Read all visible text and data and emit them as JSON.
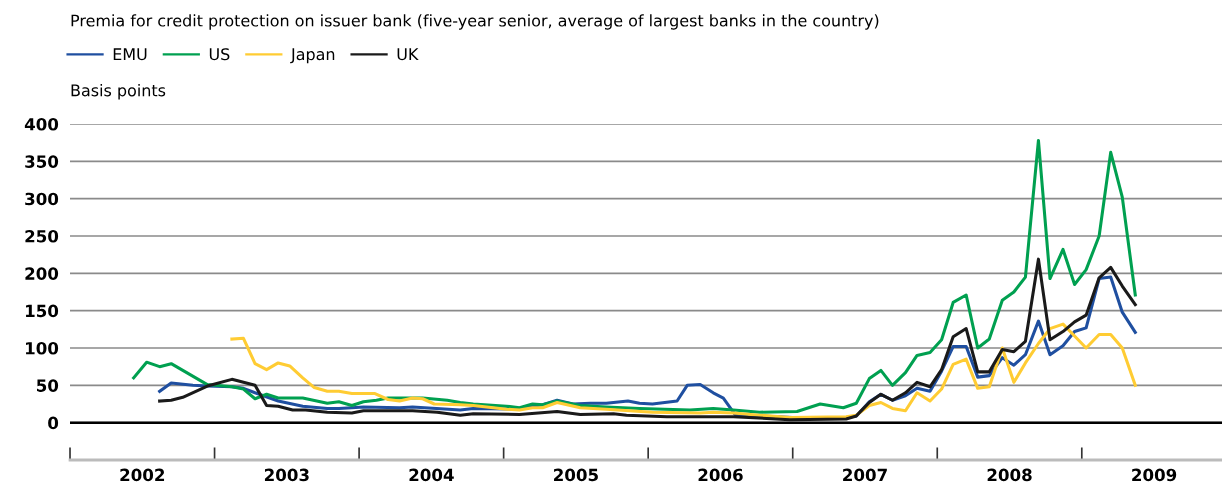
{
  "chart_data": {
    "type": "line",
    "title": "Premia for credit protection on issuer bank (five-year senior, average of largest banks in the country)",
    "ylabel": "Basis points",
    "series": [
      {
        "name": "EMU",
        "color": "#1f4fa0",
        "x": [
          2002.62,
          2002.7,
          2002.85,
          2002.95,
          2003.12,
          2003.2,
          2003.28,
          2003.44,
          2003.61,
          2003.78,
          2003.86,
          2003.95,
          2004.03,
          2004.28,
          2004.37,
          2004.7,
          2004.79,
          2005.11,
          2005.2,
          2005.27,
          2005.37,
          2005.48,
          2005.6,
          2005.71,
          2005.86,
          2005.94,
          2006.03,
          2006.2,
          2006.27,
          2006.36,
          2006.45,
          2006.52,
          2006.6,
          2006.77,
          2007.0,
          2007.37,
          2007.44,
          2007.53,
          2007.61,
          2007.69,
          2007.78,
          2007.86,
          2007.95,
          2008.03,
          2008.11,
          2008.2,
          2008.28,
          2008.36,
          2008.45,
          2008.53,
          2008.61,
          2008.7,
          2008.78,
          2008.87,
          2008.95,
          2009.03,
          2009.12,
          2009.2,
          2009.28,
          2009.37
        ],
        "values": [
          42,
          53,
          50,
          49,
          48,
          46,
          40,
          29,
          22,
          19,
          19,
          20,
          21,
          20,
          21,
          17,
          19,
          18,
          22,
          24,
          30,
          25,
          26,
          26,
          29,
          26,
          25,
          29,
          50,
          51,
          40,
          33,
          11,
          9,
          7,
          7,
          9,
          28,
          38,
          30,
          36,
          46,
          42,
          69,
          102,
          102,
          61,
          63,
          87,
          77,
          91,
          136,
          91,
          103,
          122,
          127,
          193,
          195,
          148,
          121
        ]
      },
      {
        "name": "US",
        "color": "#00a050",
        "x": [
          2002.44,
          2002.53,
          2002.62,
          2002.7,
          2002.95,
          2003.12,
          2003.2,
          2003.28,
          2003.36,
          2003.44,
          2003.61,
          2003.78,
          2003.86,
          2003.95,
          2004.03,
          2004.12,
          2004.2,
          2004.44,
          2004.61,
          2004.7,
          2004.79,
          2005.02,
          2005.11,
          2005.2,
          2005.27,
          2005.37,
          2005.53,
          2005.71,
          2005.94,
          2006.29,
          2006.45,
          2006.59,
          2006.77,
          2007.03,
          2007.19,
          2007.35,
          2007.44,
          2007.53,
          2007.61,
          2007.69,
          2007.78,
          2007.86,
          2007.95,
          2008.03,
          2008.11,
          2008.2,
          2008.28,
          2008.36,
          2008.45,
          2008.53,
          2008.61,
          2008.7,
          2008.78,
          2008.87,
          2008.95,
          2009.03,
          2009.12,
          2009.2,
          2009.28,
          2009.37
        ],
        "values": [
          60,
          81,
          75,
          79,
          51,
          48,
          45,
          32,
          38,
          33,
          33,
          26,
          28,
          23,
          28,
          30,
          33,
          33,
          30,
          27,
          25,
          22,
          20,
          25,
          24,
          29,
          23,
          21,
          19,
          17,
          19,
          17,
          14,
          15,
          25,
          20,
          26,
          59,
          70,
          50,
          67,
          90,
          94,
          111,
          161,
          171,
          100,
          112,
          164,
          175,
          195,
          378,
          193,
          232,
          185,
          205,
          250,
          362,
          302,
          171
        ]
      },
      {
        "name": "Japan",
        "color": "#ffcc33",
        "x": [
          2003.12,
          2003.2,
          2003.28,
          2003.36,
          2003.44,
          2003.52,
          2003.61,
          2003.69,
          2003.78,
          2003.86,
          2003.95,
          2004.11,
          2004.2,
          2004.28,
          2004.37,
          2004.44,
          2004.52,
          2004.7,
          2004.79,
          2005.02,
          2005.11,
          2005.2,
          2005.27,
          2005.37,
          2005.53,
          2005.71,
          2006.03,
          2006.36,
          2006.45,
          2006.59,
          2006.77,
          2006.98,
          2007.37,
          2007.44,
          2007.53,
          2007.61,
          2007.69,
          2007.78,
          2007.86,
          2007.95,
          2008.03,
          2008.11,
          2008.2,
          2008.28,
          2008.36,
          2008.45,
          2008.53,
          2008.61,
          2008.7,
          2008.78,
          2008.87,
          2008.95,
          2009.03,
          2009.12,
          2009.2,
          2009.28,
          2009.37
        ],
        "values": [
          112,
          113,
          79,
          71,
          80,
          76,
          60,
          47,
          42,
          42,
          39,
          39,
          31,
          29,
          33,
          32,
          25,
          24,
          23,
          18,
          17,
          20,
          20,
          27,
          20,
          18,
          14,
          13,
          14,
          13,
          10,
          7,
          8,
          10,
          23,
          27,
          19,
          16,
          40,
          29,
          45,
          78,
          85,
          46,
          48,
          100,
          54,
          80,
          106,
          126,
          132,
          116,
          100,
          118,
          118,
          100,
          50
        ]
      },
      {
        "name": "UK",
        "color": "#1a1a1a",
        "x": [
          2002.62,
          2002.7,
          2002.78,
          2002.95,
          2003.12,
          2003.28,
          2003.36,
          2003.44,
          2003.54,
          2003.63,
          2003.78,
          2003.95,
          2004.03,
          2004.28,
          2004.37,
          2004.54,
          2004.7,
          2004.79,
          2005.11,
          2005.37,
          2005.53,
          2005.76,
          2005.85,
          2006.13,
          2006.59,
          2006.98,
          2007.37,
          2007.44,
          2007.53,
          2007.61,
          2007.69,
          2007.78,
          2007.86,
          2007.95,
          2008.03,
          2008.11,
          2008.2,
          2008.28,
          2008.36,
          2008.45,
          2008.53,
          2008.61,
          2008.7,
          2008.78,
          2008.87,
          2008.95,
          2009.03,
          2009.12,
          2009.2,
          2009.28,
          2009.37
        ],
        "values": [
          29,
          30,
          34,
          49,
          58,
          50,
          23,
          22,
          17,
          17,
          14,
          13,
          16,
          16,
          16,
          14,
          10,
          12,
          11,
          15,
          11,
          12,
          10,
          8,
          8,
          4,
          5,
          9,
          27,
          38,
          30,
          40,
          54,
          48,
          71,
          115,
          126,
          68,
          68,
          98,
          95,
          109,
          219,
          111,
          122,
          135,
          144,
          194,
          208,
          183,
          158
        ]
      }
    ],
    "xlim": [
      2002,
      2009.97
    ],
    "xticks": [
      {
        "value": 2002,
        "label": null
      },
      {
        "value": 2002.5,
        "label": "2002"
      },
      {
        "value": 2003,
        "label": null
      },
      {
        "value": 2003.5,
        "label": "2003"
      },
      {
        "value": 2004,
        "label": null
      },
      {
        "value": 2004.5,
        "label": "2004"
      },
      {
        "value": 2005,
        "label": null
      },
      {
        "value": 2005.5,
        "label": "2005"
      },
      {
        "value": 2006,
        "label": null
      },
      {
        "value": 2006.5,
        "label": "2006"
      },
      {
        "value": 2007,
        "label": null
      },
      {
        "value": 2007.5,
        "label": "2007"
      },
      {
        "value": 2008,
        "label": null
      },
      {
        "value": 2008.5,
        "label": "2008"
      },
      {
        "value": 2009,
        "label": null
      },
      {
        "value": 2009.5,
        "label": "2009"
      }
    ],
    "ylim": [
      -50,
      400
    ],
    "yticks": [
      0,
      50,
      100,
      150,
      200,
      250,
      300,
      350,
      400
    ],
    "ref_lines": [
      {
        "axis": "y",
        "value": 0,
        "color": "#000000"
      }
    ],
    "grid": "y",
    "legend": "top left",
    "marker": "none",
    "line_style": "solid"
  }
}
